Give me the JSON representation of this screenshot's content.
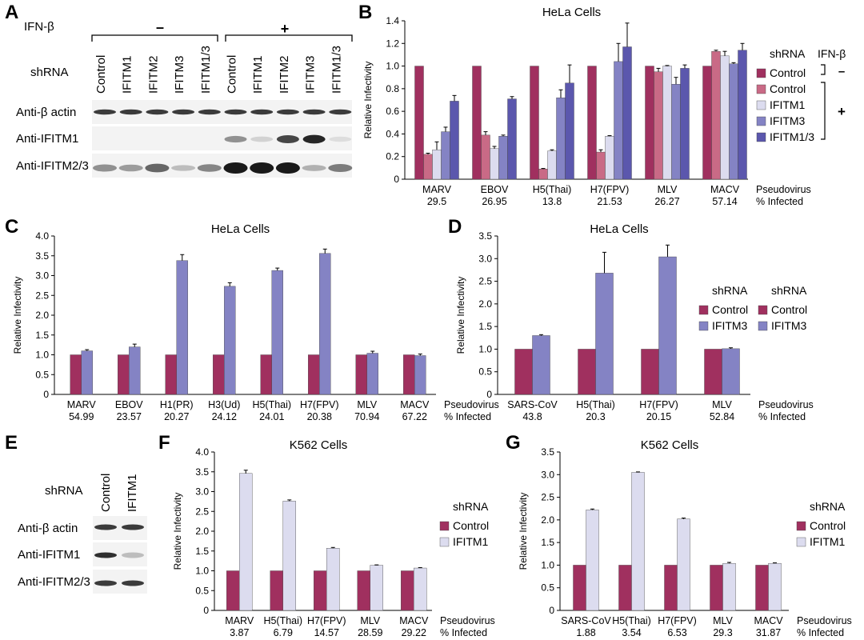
{
  "panel_letters": {
    "A": "A",
    "B": "B",
    "C": "C",
    "D": "D",
    "E": "E",
    "F": "F",
    "G": "G"
  },
  "colors": {
    "control_minus": "#a0305f",
    "control_plus": "#c96a86",
    "ifitm1": "#dcdcef",
    "ifitm3": "#8483c4",
    "ifitm13": "#5b57ad",
    "bar_edge": "#444444",
    "blot_band": "#1a1a1a"
  },
  "panelA": {
    "ifn_label": "IFN-β",
    "minus": "–",
    "plus": "+",
    "shrna_label": "shRNA",
    "lanes": [
      "Control",
      "IFITM1",
      "IFITM2",
      "IFITM3",
      "IFITM1/3",
      "Control",
      "IFITM1",
      "IFITM2",
      "IFITM3",
      "IFITM1/3"
    ],
    "blots": [
      "Anti-β actin",
      "Anti-IFITM1",
      "Anti-IFITM2/3"
    ]
  },
  "panelE": {
    "shrna_label": "shRNA",
    "lanes": [
      "Control",
      "IFITM1"
    ],
    "blots": [
      "Anti-β actin",
      "Anti-IFITM1",
      "Anti-IFITM2/3"
    ]
  },
  "chart_data": [
    {
      "id": "B",
      "type": "bar",
      "title": "HeLa Cells",
      "ylabel": "Relative Infectivity",
      "ylim": [
        0,
        1.4
      ],
      "yticks": [
        "0",
        "0.2",
        "0.4",
        "0.6",
        "0.8",
        "1.0",
        "1.2",
        "1.4"
      ],
      "categories": [
        "MARV",
        "EBOV",
        "H5(Thai)",
        "H7(FPV)",
        "MLV",
        "MACV"
      ],
      "percent_infected": [
        "29.5",
        "26.95",
        "13.8",
        "21.53",
        "26.27",
        "57.14"
      ],
      "footer": [
        "Pseudovirus",
        "% Infected"
      ],
      "legend_title": "shRNA",
      "ifn_label": "IFN-β",
      "ifn_minus": "–",
      "ifn_plus": "+",
      "series": [
        {
          "name": "Control",
          "ifn": "-",
          "color_key": "control_minus",
          "values": [
            1.0,
            1.0,
            1.0,
            1.0,
            1.0,
            1.0
          ],
          "errors": [
            0,
            0,
            0,
            0,
            0,
            0
          ]
        },
        {
          "name": "Control",
          "ifn": "+",
          "color_key": "control_plus",
          "values": [
            0.22,
            0.39,
            0.09,
            0.24,
            0.95,
            1.13
          ],
          "errors": [
            0.01,
            0.03,
            0.005,
            0.02,
            0.03,
            0.01
          ]
        },
        {
          "name": "IFITM1",
          "ifn": "+",
          "color_key": "ifitm1",
          "values": [
            0.26,
            0.27,
            0.25,
            0.38,
            1.0,
            1.09
          ],
          "errors": [
            0.07,
            0.02,
            0.01,
            0.005,
            0.005,
            0.04
          ]
        },
        {
          "name": "IFITM3",
          "ifn": "+",
          "color_key": "ifitm3",
          "values": [
            0.42,
            0.38,
            0.72,
            1.04,
            0.84,
            1.02
          ],
          "errors": [
            0.04,
            0.01,
            0.07,
            0.16,
            0.06,
            0.01
          ]
        },
        {
          "name": "IFITM1/3",
          "ifn": "+",
          "color_key": "ifitm13",
          "values": [
            0.69,
            0.71,
            0.85,
            1.17,
            0.98,
            1.14
          ],
          "errors": [
            0.05,
            0.02,
            0.16,
            0.21,
            0.03,
            0.06
          ]
        }
      ]
    },
    {
      "id": "C",
      "type": "bar",
      "title": "HeLa Cells",
      "ylabel": "Relative Infectivity",
      "ylim": [
        0,
        4.0
      ],
      "yticks": [
        "0",
        "0.5",
        "1.0",
        "1.5",
        "2.0",
        "2.5",
        "3.0",
        "3.5",
        "4.0"
      ],
      "categories": [
        "MARV",
        "EBOV",
        "H1(PR)",
        "H3(Ud)",
        "H5(Thai)",
        "H7(FPV)",
        "MLV",
        "MACV"
      ],
      "percent_infected": [
        "54.99",
        "23.57",
        "20.27",
        "24.12",
        "24.01",
        "20.38",
        "70.94",
        "67.22"
      ],
      "footer": [
        "Pseudovirus",
        "% Infected"
      ],
      "legend_title": "shRNA",
      "series": [
        {
          "name": "Control",
          "color_key": "control_minus",
          "values": [
            1.0,
            1.0,
            1.0,
            1.0,
            1.0,
            1.0,
            1.0,
            1.0
          ],
          "errors": [
            0,
            0,
            0,
            0,
            0,
            0,
            0,
            0
          ]
        },
        {
          "name": "IFITM3",
          "color_key": "ifitm3",
          "values": [
            1.1,
            1.2,
            3.38,
            2.73,
            3.13,
            3.56,
            1.04,
            0.98
          ],
          "errors": [
            0.03,
            0.07,
            0.15,
            0.09,
            0.06,
            0.11,
            0.05,
            0.04
          ]
        }
      ]
    },
    {
      "id": "D",
      "type": "bar",
      "title": "HeLa Cells",
      "ylabel": "Relative Infectivity",
      "ylim": [
        0,
        3.5
      ],
      "yticks": [
        "0",
        "0.5",
        "1.0",
        "1.5",
        "2.0",
        "2.5",
        "3.0",
        "3.5"
      ],
      "categories": [
        "SARS-CoV",
        "H5(Thai)",
        "H7(FPV)",
        "MLV"
      ],
      "percent_infected": [
        "43.8",
        "20.3",
        "20.15",
        "52.84"
      ],
      "footer": [
        "Pseudovirus",
        "% Infected"
      ],
      "legend_title": "shRNA",
      "series": [
        {
          "name": "Control",
          "color_key": "control_minus",
          "values": [
            1.0,
            1.0,
            1.0,
            1.0
          ],
          "errors": [
            0,
            0,
            0,
            0
          ]
        },
        {
          "name": "IFITM3",
          "color_key": "ifitm3",
          "values": [
            1.3,
            2.68,
            3.04,
            1.01
          ],
          "errors": [
            0.02,
            0.46,
            0.26,
            0.02
          ]
        }
      ]
    },
    {
      "id": "F",
      "type": "bar",
      "title": "K562 Cells",
      "ylabel": "Relative Infectivity",
      "ylim": [
        0,
        4.0
      ],
      "yticks": [
        "0",
        "0.5",
        "1.0",
        "1.5",
        "2.0",
        "2.5",
        "3.0",
        "3.5",
        "4.0"
      ],
      "categories": [
        "MARV",
        "H5(Thai)",
        "H7(FPV)",
        "MLV",
        "MACV"
      ],
      "percent_infected": [
        "3.87",
        "6.79",
        "14.57",
        "28.59",
        "29.22"
      ],
      "footer": [
        "Pseudovirus",
        "% Infected"
      ],
      "legend_title": "shRNA",
      "series": [
        {
          "name": "Control",
          "color_key": "control_minus",
          "values": [
            1.0,
            1.0,
            1.0,
            1.0,
            1.0
          ],
          "errors": [
            0,
            0,
            0,
            0,
            0
          ]
        },
        {
          "name": "IFITM1",
          "color_key": "ifitm1",
          "values": [
            3.46,
            2.76,
            1.57,
            1.14,
            1.07
          ],
          "errors": [
            0.08,
            0.03,
            0.02,
            0.01,
            0.01
          ]
        }
      ]
    },
    {
      "id": "G",
      "type": "bar",
      "title": "K562 Cells",
      "ylabel": "Relative Infectivity",
      "ylim": [
        0,
        3.5
      ],
      "yticks": [
        "0",
        "0.5",
        "1.0",
        "1.5",
        "2.0",
        "2.5",
        "3.0",
        "3.5"
      ],
      "categories": [
        "SARS-CoV",
        "H5(Thai)",
        "H7(FPV)",
        "MLV",
        "MACV"
      ],
      "percent_infected": [
        "1.88",
        "3.54",
        "6.53",
        "29.3",
        "31.87"
      ],
      "footer": [
        "Pseudovirus",
        "% Infected"
      ],
      "legend_title": "shRNA",
      "series": [
        {
          "name": "Control",
          "color_key": "control_minus",
          "values": [
            1.0,
            1.0,
            1.0,
            1.0,
            1.0
          ],
          "errors": [
            0,
            0,
            0,
            0,
            0
          ]
        },
        {
          "name": "IFITM1",
          "color_key": "ifitm1",
          "values": [
            2.22,
            3.05,
            2.02,
            1.04,
            1.04
          ],
          "errors": [
            0.02,
            0.01,
            0.02,
            0.02,
            0.01
          ]
        }
      ]
    }
  ]
}
